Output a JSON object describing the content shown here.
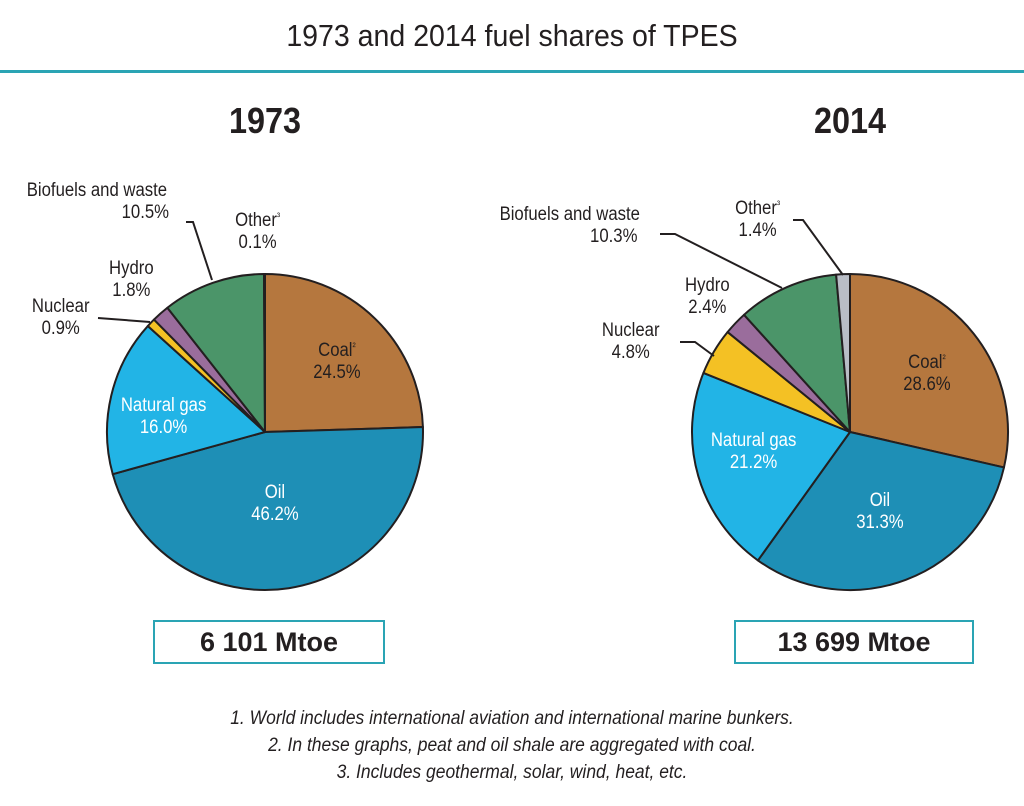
{
  "title": "1973 and 2014 fuel shares of TPES",
  "colors": {
    "Coal": "#b5773e",
    "Oil": "#1e8fb6",
    "Natural gas": "#22b4e6",
    "Nuclear": "#f4c124",
    "Hydro": "#9a6d9c",
    "Biofuels and waste": "#4b9569",
    "Other": "#b9bdc6",
    "accent": "#2aa4b4"
  },
  "chart_data": [
    {
      "type": "pie",
      "title": "1973",
      "total": "6 101 Mtoe",
      "categories": [
        "Coal²",
        "Oil",
        "Natural gas",
        "Nuclear",
        "Hydro",
        "Biofuels and waste",
        "Other³"
      ],
      "values": [
        24.5,
        46.2,
        16.0,
        0.9,
        1.8,
        10.5,
        0.1
      ],
      "labels": [
        "24.5%",
        "46.2%",
        "16.0%",
        "0.9%",
        "1.8%",
        "10.5%",
        "0.1%"
      ]
    },
    {
      "type": "pie",
      "title": "2014",
      "total": "13 699 Mtoe",
      "categories": [
        "Coal²",
        "Oil",
        "Natural gas",
        "Nuclear",
        "Hydro",
        "Biofuels and waste",
        "Other³"
      ],
      "values": [
        28.6,
        31.3,
        21.2,
        4.8,
        2.4,
        10.3,
        1.4
      ],
      "labels": [
        "28.6%",
        "31.3%",
        "21.2%",
        "4.8%",
        "2.4%",
        "10.3%",
        "1.4%"
      ]
    }
  ],
  "footnotes": [
    "1. World includes international aviation and international marine bunkers.",
    "2. In these graphs, peat and oil shale are aggregated with coal.",
    "3. Includes geothermal, solar, wind, heat, etc."
  ]
}
